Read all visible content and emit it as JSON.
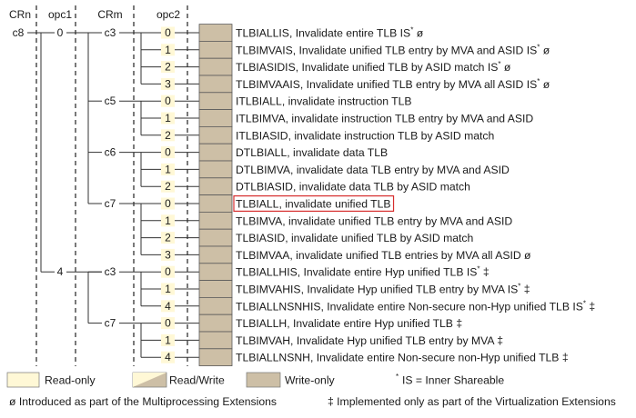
{
  "headers": {
    "crn": "CRn",
    "opc1": "opc1",
    "crm": "CRm",
    "opc2": "opc2"
  },
  "crn_value": "c8",
  "opc1_values": [
    "0",
    "4"
  ],
  "crm_groups": [
    {
      "crm": "c3",
      "opc1": "0"
    },
    {
      "crm": "c5",
      "opc1": "0"
    },
    {
      "crm": "c6",
      "opc1": "0"
    },
    {
      "crm": "c7",
      "opc1": "0"
    },
    {
      "crm": "c3",
      "opc1": "4"
    },
    {
      "crm": "c7",
      "opc1": "4"
    }
  ],
  "rows": [
    {
      "opc2": "0",
      "name": "TLBIALLIS",
      "desc": ", Invalidate entire TLB IS",
      "sup": "*",
      "tail": " ø",
      "highlighted": false
    },
    {
      "opc2": "1",
      "name": "TLBIMVAIS",
      "desc": ", Invalidate unified TLB entry by MVA and ASID IS",
      "sup": "*",
      "tail": " ø",
      "highlighted": false
    },
    {
      "opc2": "2",
      "name": "TLBIASIDIS",
      "desc": ", Invalidate unified TLB by ASID match IS",
      "sup": "*",
      "tail": " ø",
      "highlighted": false
    },
    {
      "opc2": "3",
      "name": "TLBIMVAAIS",
      "desc": ", Invalidate unified TLB entry by MVA all ASID IS",
      "sup": "*",
      "tail": " ø",
      "highlighted": false
    },
    {
      "opc2": "0",
      "name": "ITLBIALL",
      "desc": ", invalidate instruction TLB",
      "sup": "",
      "tail": "",
      "highlighted": false
    },
    {
      "opc2": "1",
      "name": "ITLBIMVA",
      "desc": ", invalidate instruction TLB entry by MVA and ASID",
      "sup": "",
      "tail": "",
      "highlighted": false
    },
    {
      "opc2": "2",
      "name": "ITLBIASID",
      "desc": ", invalidate instruction TLB by ASID match",
      "sup": "",
      "tail": "",
      "highlighted": false
    },
    {
      "opc2": "0",
      "name": "DTLBIALL",
      "desc": ", invalidate data TLB",
      "sup": "",
      "tail": "",
      "highlighted": false
    },
    {
      "opc2": "1",
      "name": "DTLBIMVA",
      "desc": ", invalidate data TLB entry by MVA and ASID",
      "sup": "",
      "tail": "",
      "highlighted": false
    },
    {
      "opc2": "2",
      "name": "DTLBIASID",
      "desc": ", invalidate data TLB by ASID match",
      "sup": "",
      "tail": "",
      "highlighted": false
    },
    {
      "opc2": "0",
      "name": "TLBIALL",
      "desc": ", invalidate unified TLB",
      "sup": "",
      "tail": "",
      "highlighted": true
    },
    {
      "opc2": "1",
      "name": "TLBIMVA",
      "desc": ", invalidate unified TLB entry by MVA and ASID",
      "sup": "",
      "tail": "",
      "highlighted": false
    },
    {
      "opc2": "2",
      "name": "TLBIASID",
      "desc": ", invalidate unified TLB by ASID match",
      "sup": "",
      "tail": "",
      "highlighted": false
    },
    {
      "opc2": "3",
      "name": "TLBIMVAA",
      "desc": ", invalidate unified TLB entries by MVA all ASID",
      "sup": "",
      "tail": " ø",
      "highlighted": false
    },
    {
      "opc2": "0",
      "name": "TLBIALLHIS",
      "desc": ", Invalidate entire Hyp unified TLB IS",
      "sup": "*",
      "tail": " ‡",
      "highlighted": false
    },
    {
      "opc2": "1",
      "name": "TLBIMVAHIS",
      "desc": ", Invalidate Hyp unified TLB entry by MVA IS",
      "sup": "*",
      "tail": " ‡",
      "highlighted": false
    },
    {
      "opc2": "4",
      "name": "TLBIALLNSNHIS",
      "desc": ", Invalidate entire Non-secure non-Hyp unified TLB IS",
      "sup": "*",
      "tail": " ‡",
      "highlighted": false
    },
    {
      "opc2": "0",
      "name": "TLBIALLH",
      "desc": ", Invalidate entire Hyp unified TLB",
      "sup": "",
      "tail": " ‡",
      "highlighted": false
    },
    {
      "opc2": "1",
      "name": "TLBIMVAH",
      "desc": ", Invalidate Hyp unified TLB entry by MVA",
      "sup": "",
      "tail": " ‡",
      "highlighted": false
    },
    {
      "opc2": "4",
      "name": "TLBIALLNSNH",
      "desc": ", Invalidate entire Non-secure non-Hyp unified TLB",
      "sup": "",
      "tail": " ‡",
      "highlighted": false
    }
  ],
  "legend": {
    "read_only": "Read-only",
    "read_write": "Read/Write",
    "write_only": "Write-only",
    "is_note_mark": "*",
    "is_note": "IS = Inner Shareable"
  },
  "footnotes": {
    "mp": "ø Introduced as part of the Multiprocessing Extensions",
    "virt": "‡ Implemented only as part of the Virtualization Extensions"
  },
  "colors": {
    "register_fill": "#cdbfa6",
    "read_only_fill": "#fff8d6",
    "opc2_box_fill": "#fff8d6",
    "highlight_border": "#d62e2e",
    "line": "#333333"
  }
}
